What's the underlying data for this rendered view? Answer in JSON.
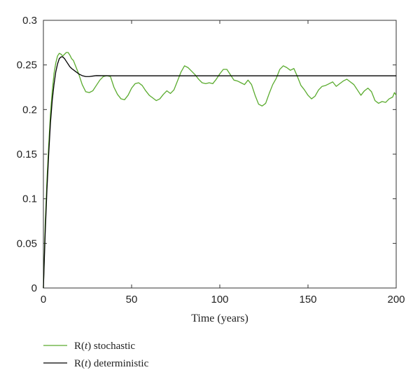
{
  "chart_data": {
    "type": "line",
    "xlabel": "Time (years)",
    "ylabel": "",
    "xlim": [
      0,
      200
    ],
    "ylim": [
      0,
      0.3
    ],
    "x_ticks": [
      0,
      50,
      100,
      150,
      200
    ],
    "x_tick_labels": [
      "0",
      "50",
      "100",
      "150",
      "200"
    ],
    "y_ticks": [
      0,
      0.05,
      0.1,
      0.15,
      0.2,
      0.25,
      0.3
    ],
    "y_tick_labels": [
      "0",
      "0.05",
      "0.1",
      "0.15",
      "0.2",
      "0.25",
      "0.3"
    ],
    "grid": false,
    "legend_position": "bottom-left (below plot)",
    "series": [
      {
        "name": "R(t) stochastic",
        "legend_prefix": "R(",
        "legend_var": "t",
        "legend_suffix": ") stochastic",
        "color": "#5aab2e",
        "points": [
          [
            0,
            0
          ],
          [
            1,
            0.07
          ],
          [
            2,
            0.12
          ],
          [
            3,
            0.16
          ],
          [
            4,
            0.195
          ],
          [
            5,
            0.22
          ],
          [
            6,
            0.24
          ],
          [
            7,
            0.252
          ],
          [
            8,
            0.26
          ],
          [
            9,
            0.263
          ],
          [
            10,
            0.262
          ],
          [
            11,
            0.26
          ],
          [
            12,
            0.262
          ],
          [
            13,
            0.264
          ],
          [
            14,
            0.264
          ],
          [
            15,
            0.261
          ],
          [
            16,
            0.257
          ],
          [
            17,
            0.255
          ],
          [
            18,
            0.25
          ],
          [
            20,
            0.24
          ],
          [
            22,
            0.228
          ],
          [
            24,
            0.22
          ],
          [
            26,
            0.219
          ],
          [
            28,
            0.221
          ],
          [
            30,
            0.227
          ],
          [
            32,
            0.233
          ],
          [
            34,
            0.237
          ],
          [
            36,
            0.238
          ],
          [
            38,
            0.237
          ],
          [
            40,
            0.225
          ],
          [
            42,
            0.217
          ],
          [
            44,
            0.212
          ],
          [
            46,
            0.211
          ],
          [
            48,
            0.216
          ],
          [
            50,
            0.224
          ],
          [
            52,
            0.229
          ],
          [
            54,
            0.23
          ],
          [
            56,
            0.227
          ],
          [
            58,
            0.221
          ],
          [
            60,
            0.216
          ],
          [
            62,
            0.213
          ],
          [
            64,
            0.21
          ],
          [
            66,
            0.212
          ],
          [
            68,
            0.217
          ],
          [
            70,
            0.221
          ],
          [
            72,
            0.218
          ],
          [
            74,
            0.222
          ],
          [
            76,
            0.232
          ],
          [
            78,
            0.242
          ],
          [
            80,
            0.249
          ],
          [
            82,
            0.247
          ],
          [
            84,
            0.243
          ],
          [
            86,
            0.239
          ],
          [
            88,
            0.234
          ],
          [
            90,
            0.23
          ],
          [
            92,
            0.229
          ],
          [
            94,
            0.23
          ],
          [
            96,
            0.229
          ],
          [
            98,
            0.234
          ],
          [
            100,
            0.24
          ],
          [
            102,
            0.245
          ],
          [
            104,
            0.245
          ],
          [
            106,
            0.239
          ],
          [
            108,
            0.233
          ],
          [
            110,
            0.232
          ],
          [
            112,
            0.23
          ],
          [
            114,
            0.228
          ],
          [
            116,
            0.233
          ],
          [
            118,
            0.228
          ],
          [
            120,
            0.216
          ],
          [
            122,
            0.206
          ],
          [
            124,
            0.204
          ],
          [
            126,
            0.207
          ],
          [
            128,
            0.218
          ],
          [
            130,
            0.228
          ],
          [
            132,
            0.235
          ],
          [
            134,
            0.245
          ],
          [
            136,
            0.249
          ],
          [
            138,
            0.247
          ],
          [
            140,
            0.244
          ],
          [
            142,
            0.246
          ],
          [
            144,
            0.237
          ],
          [
            146,
            0.227
          ],
          [
            148,
            0.222
          ],
          [
            150,
            0.216
          ],
          [
            152,
            0.212
          ],
          [
            154,
            0.215
          ],
          [
            156,
            0.222
          ],
          [
            158,
            0.226
          ],
          [
            160,
            0.227
          ],
          [
            162,
            0.229
          ],
          [
            164,
            0.231
          ],
          [
            166,
            0.226
          ],
          [
            168,
            0.229
          ],
          [
            170,
            0.232
          ],
          [
            172,
            0.234
          ],
          [
            174,
            0.231
          ],
          [
            176,
            0.228
          ],
          [
            178,
            0.222
          ],
          [
            180,
            0.216
          ],
          [
            182,
            0.221
          ],
          [
            184,
            0.224
          ],
          [
            186,
            0.22
          ],
          [
            188,
            0.21
          ],
          [
            190,
            0.207
          ],
          [
            192,
            0.209
          ],
          [
            194,
            0.208
          ],
          [
            196,
            0.212
          ],
          [
            198,
            0.214
          ],
          [
            199,
            0.219
          ],
          [
            200,
            0.216
          ]
        ]
      },
      {
        "name": "R(t) deterministic",
        "legend_prefix": "R(",
        "legend_var": "t",
        "legend_suffix": ") deterministic",
        "color": "#000000",
        "points": [
          [
            0,
            0
          ],
          [
            1,
            0.06
          ],
          [
            2,
            0.11
          ],
          [
            3,
            0.15
          ],
          [
            4,
            0.185
          ],
          [
            5,
            0.21
          ],
          [
            6,
            0.228
          ],
          [
            7,
            0.242
          ],
          [
            8,
            0.251
          ],
          [
            9,
            0.257
          ],
          [
            10,
            0.259
          ],
          [
            11,
            0.259
          ],
          [
            12,
            0.257
          ],
          [
            13,
            0.254
          ],
          [
            14,
            0.251
          ],
          [
            15,
            0.248
          ],
          [
            16,
            0.246
          ],
          [
            18,
            0.243
          ],
          [
            20,
            0.24
          ],
          [
            22,
            0.238
          ],
          [
            24,
            0.237
          ],
          [
            26,
            0.237
          ],
          [
            28,
            0.2375
          ],
          [
            30,
            0.238
          ],
          [
            40,
            0.2378
          ],
          [
            60,
            0.2378
          ],
          [
            100,
            0.2378
          ],
          [
            150,
            0.2378
          ],
          [
            200,
            0.2378
          ]
        ]
      }
    ]
  }
}
